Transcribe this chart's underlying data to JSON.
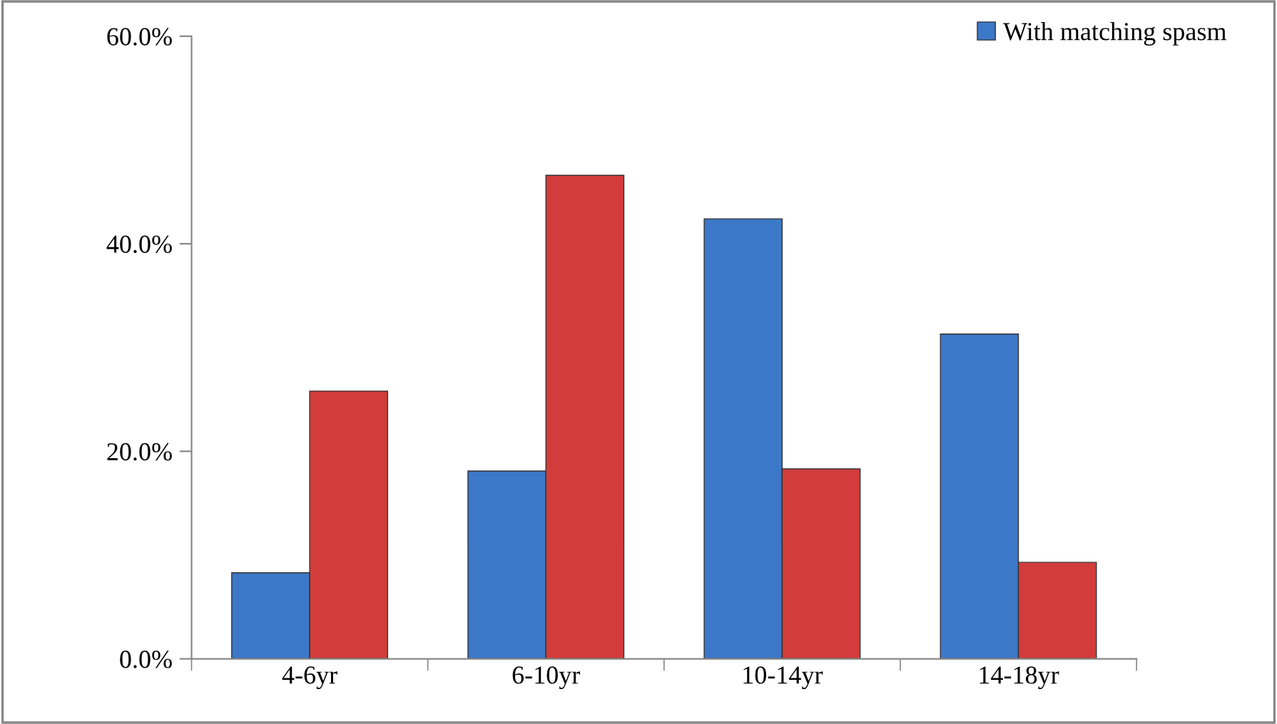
{
  "chart_data": {
    "type": "bar",
    "categories": [
      "4-6yr",
      "6-10yr",
      "10-14yr",
      "14-18yr"
    ],
    "series": [
      {
        "name": "With matching spasm",
        "color": "#3c78c8",
        "values": [
          8.3,
          18.1,
          42.4,
          31.3
        ]
      },
      {
        "color": "#d23c3a",
        "values": [
          25.8,
          46.6,
          18.3,
          9.3
        ]
      }
    ],
    "ylim": [
      0,
      60
    ],
    "yticks": [
      {
        "value": 0,
        "label": "0.0%"
      },
      {
        "value": 20,
        "label": "20.0%"
      },
      {
        "value": 40,
        "label": "40.0%"
      },
      {
        "value": 60,
        "label": "60.0%"
      }
    ],
    "grid": false,
    "legend": "top right"
  }
}
